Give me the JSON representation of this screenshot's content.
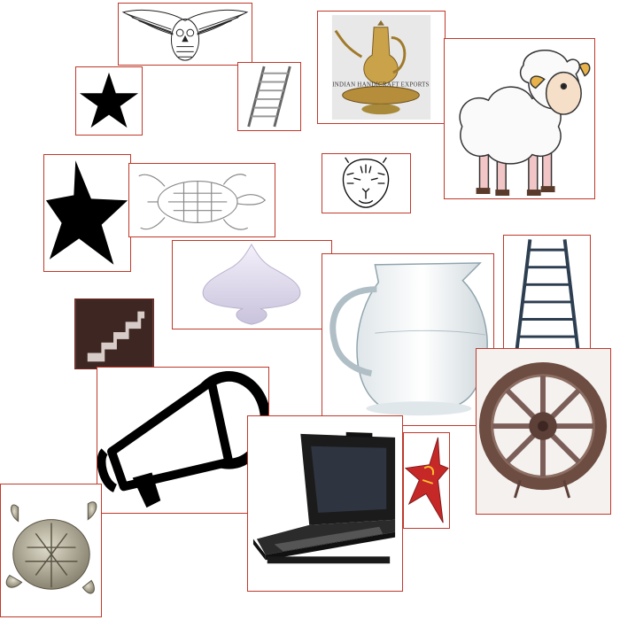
{
  "canvas": {
    "background": "#ffffff",
    "border_color": "#c0392b"
  },
  "tiles": [
    {
      "name": "owl-image",
      "icon": "owl-sketch-icon"
    },
    {
      "name": "ewer-image",
      "icon": "brass-ewer-icon",
      "watermark": "INDIAN HANDICRAFT EXPORTS"
    },
    {
      "name": "sheep-image",
      "icon": "cartoon-sheep-icon"
    },
    {
      "name": "star-small-image",
      "icon": "black-star-icon"
    },
    {
      "name": "ladder-small-image",
      "icon": "ladder-icon"
    },
    {
      "name": "star-large-image",
      "icon": "black-star-icon"
    },
    {
      "name": "turtle-sketch-image",
      "icon": "turtle-sketch-icon"
    },
    {
      "name": "tiger-image",
      "icon": "tiger-face-icon"
    },
    {
      "name": "spinning-top-image",
      "icon": "spinning-top-icon"
    },
    {
      "name": "glass-jug-image",
      "icon": "glass-pitcher-icon"
    },
    {
      "name": "ladder-large-image",
      "icon": "ladder-icon"
    },
    {
      "name": "stairs-image",
      "icon": "stairs-icon"
    },
    {
      "name": "cart-wheel-image",
      "icon": "wooden-wheel-icon"
    },
    {
      "name": "megaphone-image",
      "icon": "megaphone-icon"
    },
    {
      "name": "laptop-image",
      "icon": "rack-laptop-icon"
    },
    {
      "name": "red-star-image",
      "icon": "red-star-ornament-icon"
    },
    {
      "name": "metal-turtle-image",
      "icon": "metal-turtle-icon"
    }
  ]
}
